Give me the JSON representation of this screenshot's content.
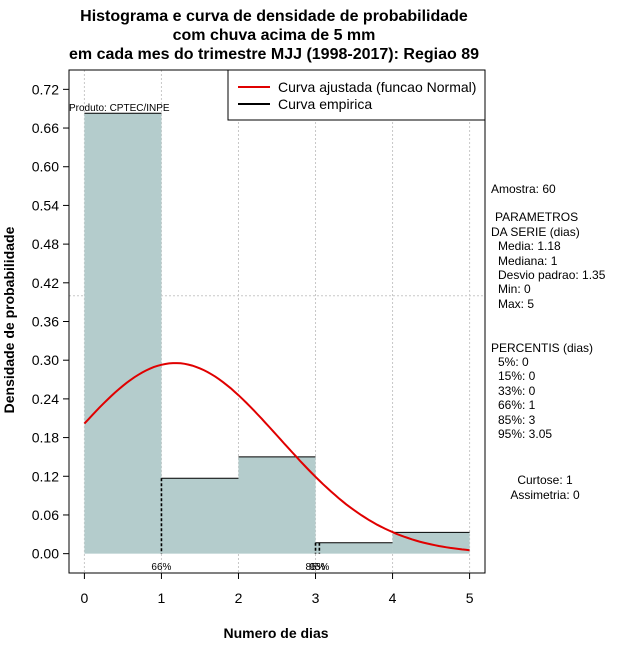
{
  "chart_data": {
    "type": "bar",
    "title_lines": [
      "Histograma e curva de densidade de probabilidade",
      "com chuva acima de 5 mm",
      "em cada mes do trimestre MJJ (1998-2017): Regiao 89"
    ],
    "xlabel": "Numero de dias",
    "ylabel": "Densidade de probabilidade",
    "xlim": [
      -0.2,
      5.2
    ],
    "ylim": [
      -0.03,
      0.75
    ],
    "x_ticks": [
      "0",
      "1",
      "2",
      "3",
      "4",
      "5"
    ],
    "y_ticks": [
      "0.00",
      "0.06",
      "0.12",
      "0.18",
      "0.24",
      "0.30",
      "0.36",
      "0.42",
      "0.48",
      "0.54",
      "0.60",
      "0.66",
      "0.72"
    ],
    "bins": [
      {
        "x0": 0,
        "x1": 1,
        "value": 0.683
      },
      {
        "x0": 1,
        "x1": 2,
        "value": 0.117
      },
      {
        "x0": 2,
        "x1": 3,
        "value": 0.15
      },
      {
        "x0": 3,
        "x1": 4,
        "value": 0.017
      },
      {
        "x0": 4,
        "x1": 5,
        "value": 0.033
      }
    ],
    "bar_color": "#b4cccc",
    "curve_color": "#e00000",
    "normal_fit": {
      "mean": 1.18,
      "sd": 1.35,
      "x_from": 0,
      "x_to": 5
    },
    "reference_line_y": 0.4,
    "percentile_lines": [
      {
        "x": 1,
        "label": "66%"
      },
      {
        "x": 3,
        "label": "85%"
      },
      {
        "x": 3.05,
        "label": "95%"
      }
    ],
    "legend": [
      {
        "label": "Curva ajustada (funcao Normal)",
        "color": "#e00000"
      },
      {
        "label": "Curva empirica",
        "color": "#000000"
      }
    ],
    "product_label": "Produto: CPTEC/INPE"
  },
  "side_panel": {
    "amostra": "Amostra: 60",
    "param_title_1": "PARAMETROS",
    "param_title_2": "DA SERIE (dias)",
    "media": "Media: 1.18",
    "mediana": "Mediana: 1",
    "desvio": "Desvio padrao: 1.35",
    "min": "Min: 0",
    "max": "Max: 5",
    "perc_title": "PERCENTIS (dias)",
    "p5": "5%: 0",
    "p15": "15%: 0",
    "p33": "33%: 0",
    "p66": "66%: 1",
    "p85": "85%: 3",
    "p95": "95%: 3.05",
    "curtose": "Curtose: 1",
    "assimetria": "Assimetria: 0"
  }
}
